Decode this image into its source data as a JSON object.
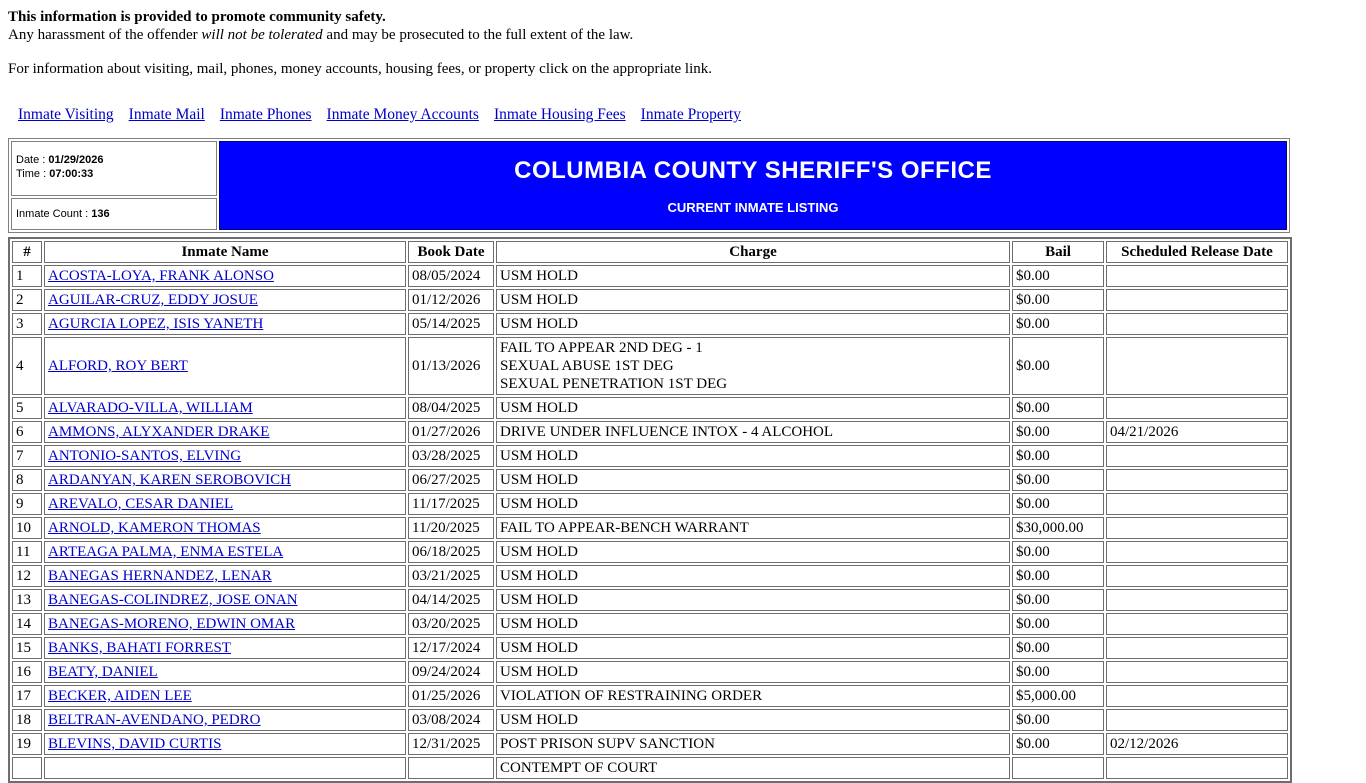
{
  "colors": {
    "link": "#0000CC",
    "banner_bg": "#0000FF",
    "banner_text": "#FFFFFF"
  },
  "notice": {
    "line1": "This information is provided to promote community safety.",
    "line2_prefix": "Any harassment of the offender ",
    "line2_italic": "will not be tolerated",
    "line2_suffix": " and may be prosecuted to the full extent of the law.",
    "info_line": "For information about visiting, mail, phones, money accounts, housing fees, or property click on the appropriate link."
  },
  "nav": {
    "links": [
      "Inmate Visiting",
      "Inmate Mail",
      "Inmate Phones",
      "Inmate Money Accounts",
      "Inmate Housing Fees",
      "Inmate Property"
    ]
  },
  "status_panel": {
    "date_label": "Date : ",
    "date_value": "01/29/2026",
    "time_label": "Time : ",
    "time_value": "07:00:33",
    "count_label": "Inmate Count : ",
    "count_value": "136"
  },
  "banner": {
    "title": "COLUMBIA COUNTY SHERIFF'S OFFICE",
    "subtitle": "CURRENT INMATE LISTING"
  },
  "table": {
    "headers": [
      "#",
      "Inmate Name",
      "Book Date",
      "Charge",
      "Bail",
      "Scheduled Release Date"
    ],
    "rows": [
      {
        "num": "1",
        "name": "ACOSTA-LOYA, FRANK ALONSO",
        "book_date": "08/05/2024",
        "charges": [
          "USM HOLD"
        ],
        "bail": "$0.00",
        "release_date": ""
      },
      {
        "num": "2",
        "name": "AGUILAR-CRUZ, EDDY JOSUE",
        "book_date": "01/12/2026",
        "charges": [
          "USM HOLD"
        ],
        "bail": "$0.00",
        "release_date": ""
      },
      {
        "num": "3",
        "name": "AGURCIA LOPEZ, ISIS YANETH",
        "book_date": "05/14/2025",
        "charges": [
          "USM HOLD"
        ],
        "bail": "$0.00",
        "release_date": ""
      },
      {
        "num": "4",
        "name": "ALFORD, ROY BERT",
        "book_date": "01/13/2026",
        "charges": [
          "FAIL TO APPEAR 2ND DEG - 1",
          "SEXUAL ABUSE 1ST DEG",
          "SEXUAL PENETRATION 1ST DEG"
        ],
        "bail": "$0.00",
        "release_date": ""
      },
      {
        "num": "5",
        "name": "ALVARADO-VILLA, WILLIAM",
        "book_date": "08/04/2025",
        "charges": [
          "USM HOLD"
        ],
        "bail": "$0.00",
        "release_date": ""
      },
      {
        "num": "6",
        "name": "AMMONS, ALYXANDER DRAKE",
        "book_date": "01/27/2026",
        "charges": [
          "DRIVE UNDER INFLUENCE INTOX - 4 ALCOHOL"
        ],
        "bail": "$0.00",
        "release_date": "04/21/2026"
      },
      {
        "num": "7",
        "name": "ANTONIO-SANTOS, ELVING",
        "book_date": "03/28/2025",
        "charges": [
          "USM HOLD"
        ],
        "bail": "$0.00",
        "release_date": ""
      },
      {
        "num": "8",
        "name": "ARDANYAN, KAREN SEROBOVICH",
        "book_date": "06/27/2025",
        "charges": [
          "USM HOLD"
        ],
        "bail": "$0.00",
        "release_date": ""
      },
      {
        "num": "9",
        "name": "AREVALO, CESAR DANIEL",
        "book_date": "11/17/2025",
        "charges": [
          "USM HOLD"
        ],
        "bail": "$0.00",
        "release_date": ""
      },
      {
        "num": "10",
        "name": "ARNOLD, KAMERON THOMAS",
        "book_date": "11/20/2025",
        "charges": [
          "FAIL TO APPEAR-BENCH WARRANT"
        ],
        "bail": "$30,000.00",
        "release_date": ""
      },
      {
        "num": "11",
        "name": "ARTEAGA PALMA, ENMA ESTELA",
        "book_date": "06/18/2025",
        "charges": [
          "USM HOLD"
        ],
        "bail": "$0.00",
        "release_date": ""
      },
      {
        "num": "12",
        "name": "BANEGAS HERNANDEZ, LENAR",
        "book_date": "03/21/2025",
        "charges": [
          "USM HOLD"
        ],
        "bail": "$0.00",
        "release_date": ""
      },
      {
        "num": "13",
        "name": "BANEGAS-COLINDREZ, JOSE ONAN",
        "book_date": "04/14/2025",
        "charges": [
          "USM HOLD"
        ],
        "bail": "$0.00",
        "release_date": ""
      },
      {
        "num": "14",
        "name": "BANEGAS-MORENO, EDWIN OMAR",
        "book_date": "03/20/2025",
        "charges": [
          "USM HOLD"
        ],
        "bail": "$0.00",
        "release_date": ""
      },
      {
        "num": "15",
        "name": "BANKS, BAHATI FORREST",
        "book_date": "12/17/2024",
        "charges": [
          "USM HOLD"
        ],
        "bail": "$0.00",
        "release_date": ""
      },
      {
        "num": "16",
        "name": "BEATY, DANIEL",
        "book_date": "09/24/2024",
        "charges": [
          "USM HOLD"
        ],
        "bail": "$0.00",
        "release_date": ""
      },
      {
        "num": "17",
        "name": "BECKER, AIDEN LEE",
        "book_date": "01/25/2026",
        "charges": [
          "VIOLATION OF RESTRAINING ORDER"
        ],
        "bail": "$5,000.00",
        "release_date": ""
      },
      {
        "num": "18",
        "name": "BELTRAN-AVENDANO, PEDRO",
        "book_date": "03/08/2024",
        "charges": [
          "USM HOLD"
        ],
        "bail": "$0.00",
        "release_date": ""
      },
      {
        "num": "19",
        "name": "BLEVINS, DAVID CURTIS",
        "book_date": "12/31/2025",
        "charges": [
          "POST PRISON SUPV SANCTION"
        ],
        "bail": "$0.00",
        "release_date": "02/12/2026"
      },
      {
        "num": "",
        "name": "",
        "book_date": "",
        "charges": [
          "CONTEMPT OF COURT"
        ],
        "bail": "",
        "release_date": ""
      }
    ]
  }
}
